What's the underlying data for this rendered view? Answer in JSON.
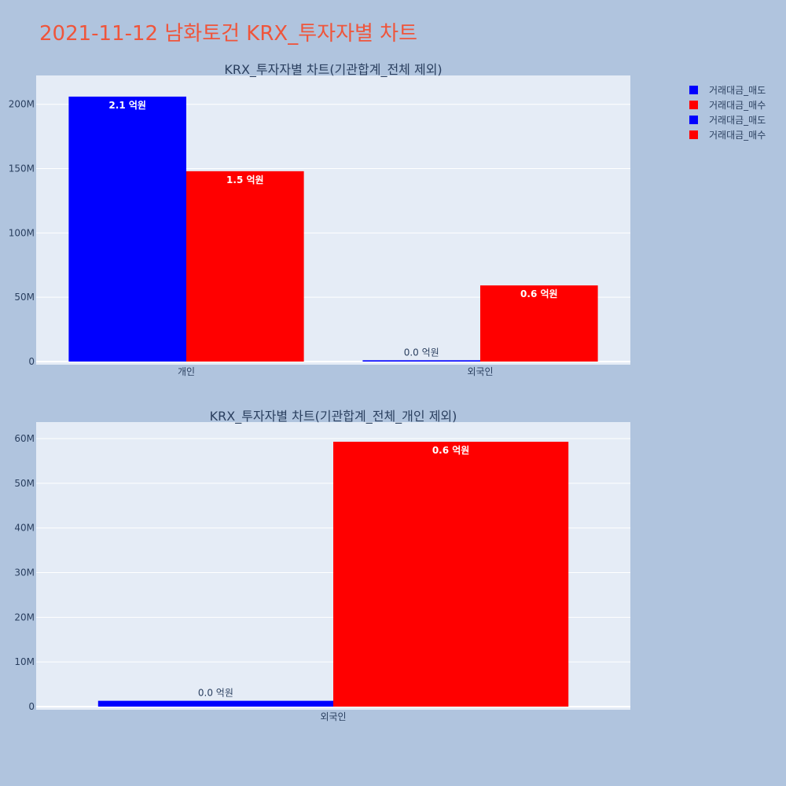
{
  "title": "2021-11-12 남화토건 KRX_투자자별 차트",
  "legend": [
    {
      "label": "거래대금_매도",
      "color": "#0000ff"
    },
    {
      "label": "거래대금_매수",
      "color": "#ff0000"
    },
    {
      "label": "거래대금_매도",
      "color": "#0000ff"
    },
    {
      "label": "거래대금_매수",
      "color": "#ff0000"
    }
  ],
  "chart_data": [
    {
      "type": "bar",
      "title": "KRX_투자자별 차트(기관합계_전체 제외)",
      "categories": [
        "개인",
        "외국인"
      ],
      "series": [
        {
          "name": "거래대금_매도",
          "color": "#0000ff",
          "values": [
            206000000,
            1000000
          ],
          "labels": [
            "2.1 억원",
            "0.0 억원"
          ]
        },
        {
          "name": "거래대금_매수",
          "color": "#ff0000",
          "values": [
            148000000,
            59200000
          ],
          "labels": [
            "1.5 억원",
            "0.6 억원"
          ]
        }
      ],
      "ylim": [
        0,
        220000000
      ],
      "yticks": [
        0,
        50000000,
        100000000,
        150000000,
        200000000
      ],
      "ytick_labels": [
        "0",
        "50M",
        "100M",
        "150M",
        "200M"
      ]
    },
    {
      "type": "bar",
      "title": "KRX_투자자별 차트(기관합계_전체_개인 제외)",
      "categories": [
        "외국인"
      ],
      "series": [
        {
          "name": "거래대금_매도",
          "color": "#0000ff",
          "values": [
            1300000
          ],
          "labels": [
            "0.0 억원"
          ]
        },
        {
          "name": "거래대금_매수",
          "color": "#ff0000",
          "values": [
            59300000
          ],
          "labels": [
            "0.6 억원"
          ]
        }
      ],
      "ylim": [
        0,
        63000000
      ],
      "yticks": [
        0,
        10000000,
        20000000,
        30000000,
        40000000,
        50000000,
        60000000
      ],
      "ytick_labels": [
        "0",
        "10M",
        "20M",
        "30M",
        "40M",
        "50M",
        "60M"
      ]
    }
  ]
}
